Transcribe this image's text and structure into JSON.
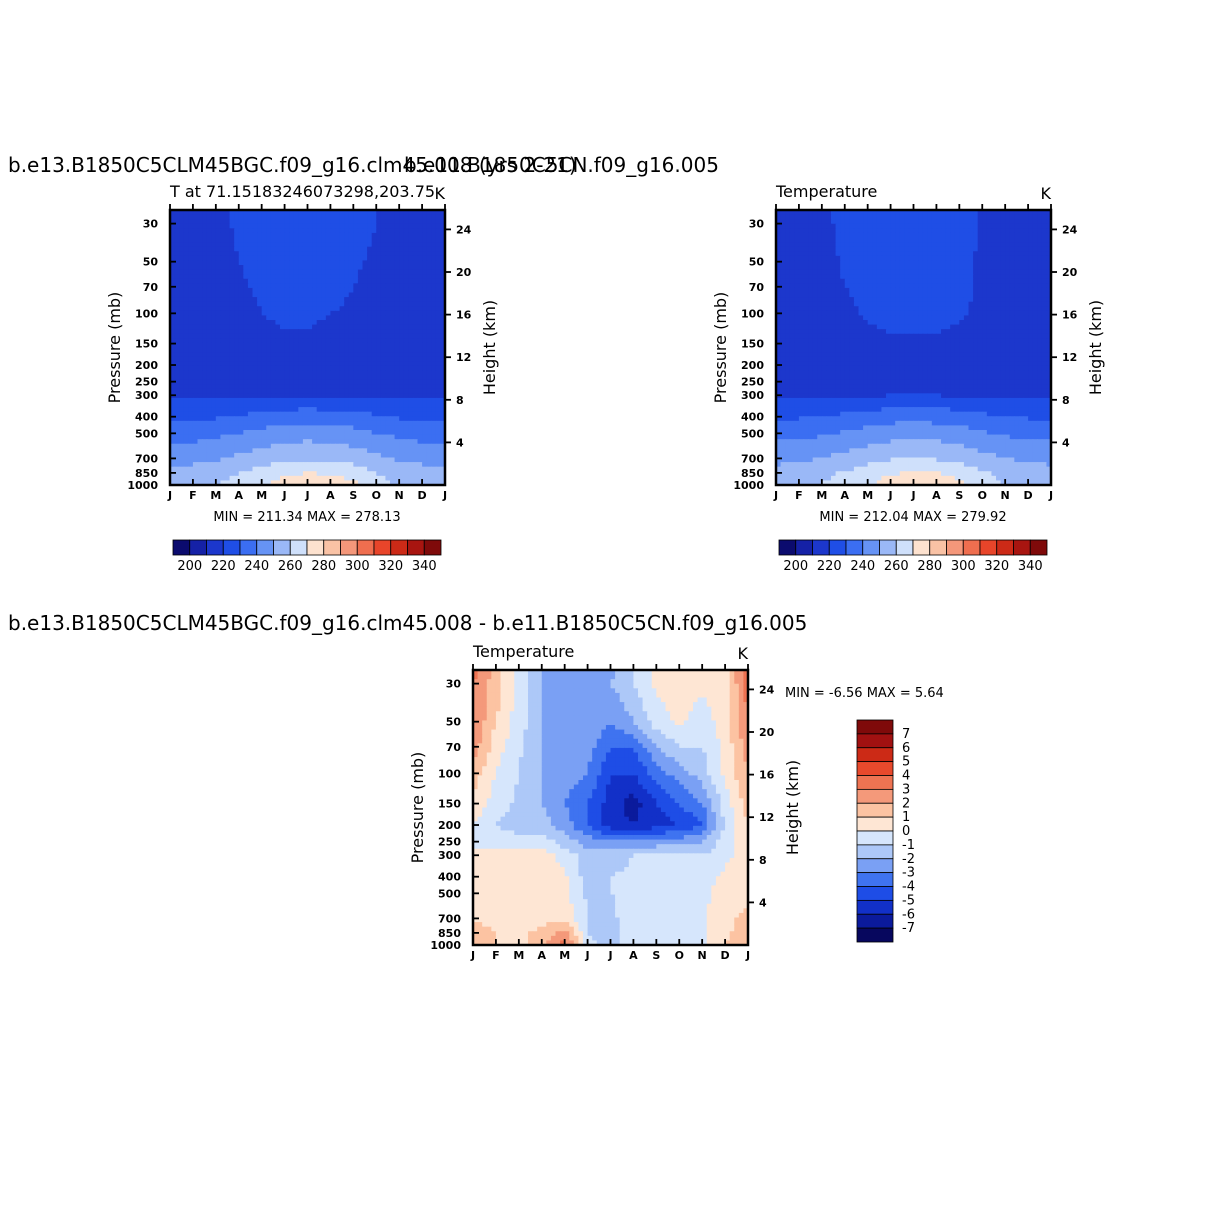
{
  "colors": {
    "temperature": [
      "#0b0b6e",
      "#1521a6",
      "#1c37cc",
      "#1f4ee6",
      "#3b6ef2",
      "#6693f5",
      "#9ab8f7",
      "#cfe0fb",
      "#fde2cf",
      "#f9c2a5",
      "#f4977a",
      "#ef6e4f",
      "#e8452a",
      "#cc2a17",
      "#a81510",
      "#7f0a0a"
    ],
    "difference": [
      "#07075e",
      "#0b1a9c",
      "#1230c8",
      "#1e4de6",
      "#3f73f0",
      "#7aa0f4",
      "#adc8f8",
      "#d6e6fc",
      "#fee6d4",
      "#fcc3a2",
      "#f4997a",
      "#ee7352",
      "#e8492c",
      "#cc2a16",
      "#a11111",
      "#7f0a0a"
    ]
  },
  "chart_data": [
    {
      "type": "heatmap",
      "panel": "top-left",
      "title": "b.e13.B1850C5CLM45BGC.f09_g16.clm45.008 (yrs 2-21)",
      "subtitle": "T at  71.15183246073298,203.75",
      "units": "K",
      "ylabel": "Pressure (mb)",
      "ylabel_right": "Height (km)",
      "x_ticks": [
        "J",
        "F",
        "M",
        "A",
        "M",
        "J",
        "J",
        "A",
        "S",
        "O",
        "N",
        "D",
        "J"
      ],
      "y_ticks": [
        30,
        50,
        70,
        100,
        150,
        200,
        250,
        300,
        400,
        500,
        700,
        850,
        1000
      ],
      "y_right_ticks": [
        24,
        20,
        16,
        12,
        8,
        4
      ],
      "ylim": [
        1000,
        25
      ],
      "y_scale": "log",
      "min_label": "MIN = 211.34",
      "max_label": "MAX = 278.13",
      "min": 211.34,
      "max": 278.13,
      "levels": [
        200,
        210,
        220,
        230,
        240,
        250,
        260,
        270,
        280,
        290,
        300,
        310,
        320,
        330,
        340
      ],
      "colorbar_labels": [
        "200",
        "220",
        "240",
        "260",
        "280",
        "300",
        "320",
        "340"
      ],
      "contours": {
        "p_levels": [
          25,
          30,
          50,
          70,
          100,
          150,
          200,
          250,
          300,
          400,
          500,
          700,
          850,
          1000
        ],
        "months": [
          0,
          1,
          2,
          3,
          4,
          5,
          6,
          7,
          8,
          9,
          10,
          11,
          12
        ],
        "values": [
          [
            212,
            214,
            218,
            221,
            222,
            223,
            224,
            223,
            222,
            220,
            215,
            212,
            212
          ],
          [
            212,
            214,
            218,
            221,
            222,
            223,
            224,
            223,
            222,
            220,
            215,
            212,
            212
          ],
          [
            212,
            213,
            217,
            220,
            222,
            223,
            223,
            222,
            221,
            219,
            214,
            212,
            212
          ],
          [
            212,
            212,
            216,
            219,
            221,
            222,
            222,
            222,
            220,
            218,
            213,
            212,
            212
          ],
          [
            212,
            212,
            214,
            218,
            220,
            221,
            221,
            220,
            219,
            216,
            212,
            212,
            212
          ],
          [
            212,
            212,
            212,
            216,
            218,
            219,
            219,
            218,
            217,
            214,
            212,
            212,
            212
          ],
          [
            212,
            212,
            212,
            214,
            215,
            216,
            216,
            216,
            215,
            213,
            212,
            212,
            212
          ],
          [
            214,
            214,
            214,
            215,
            216,
            216,
            216,
            216,
            216,
            215,
            214,
            214,
            214
          ],
          [
            218,
            218,
            218,
            218,
            218,
            219,
            219,
            219,
            218,
            218,
            218,
            218,
            218
          ],
          [
            228,
            228,
            229,
            231,
            233,
            235,
            236,
            235,
            234,
            231,
            229,
            228,
            228
          ],
          [
            236,
            236,
            238,
            240,
            243,
            245,
            246,
            245,
            243,
            240,
            238,
            236,
            236
          ],
          [
            246,
            247,
            249,
            252,
            255,
            258,
            259,
            258,
            256,
            252,
            249,
            247,
            246
          ],
          [
            253,
            254,
            256,
            260,
            264,
            268,
            270,
            269,
            266,
            260,
            256,
            254,
            253
          ],
          [
            256,
            257,
            260,
            264,
            268,
            274,
            278,
            276,
            272,
            264,
            259,
            257,
            256
          ]
        ]
      }
    },
    {
      "type": "heatmap",
      "panel": "top-right",
      "title": "b.e11.B1850C5CN.f09_g16.005",
      "subtitle": "Temperature",
      "units": "K",
      "ylabel": "Pressure (mb)",
      "ylabel_right": "Height (km)",
      "x_ticks": [
        "J",
        "F",
        "M",
        "A",
        "M",
        "J",
        "J",
        "A",
        "S",
        "O",
        "N",
        "D",
        "J"
      ],
      "y_ticks": [
        30,
        50,
        70,
        100,
        150,
        200,
        250,
        300,
        400,
        500,
        700,
        850,
        1000
      ],
      "y_right_ticks": [
        24,
        20,
        16,
        12,
        8,
        4
      ],
      "ylim": [
        1000,
        25
      ],
      "y_scale": "log",
      "min_label": "MIN = 212.04",
      "max_label": "MAX = 279.92",
      "min": 212.04,
      "max": 279.92,
      "levels": [
        200,
        210,
        220,
        230,
        240,
        250,
        260,
        270,
        280,
        290,
        300,
        310,
        320,
        330,
        340
      ],
      "colorbar_labels": [
        "200",
        "220",
        "240",
        "260",
        "280",
        "300",
        "320",
        "340"
      ],
      "contours": {
        "p_levels": [
          25,
          30,
          50,
          70,
          100,
          150,
          200,
          250,
          300,
          400,
          500,
          700,
          850,
          1000
        ],
        "months": [
          0,
          1,
          2,
          3,
          4,
          5,
          6,
          7,
          8,
          9,
          10,
          11,
          12
        ],
        "values": [
          [
            213,
            214,
            218,
            222,
            223,
            224,
            226,
            225,
            223,
            219,
            214,
            213,
            213
          ],
          [
            213,
            214,
            218,
            222,
            223,
            224,
            226,
            225,
            223,
            219,
            214,
            213,
            213
          ],
          [
            213,
            213,
            217,
            221,
            223,
            224,
            225,
            224,
            222,
            219,
            215,
            213,
            213
          ],
          [
            213,
            213,
            216,
            220,
            222,
            223,
            224,
            223,
            222,
            219,
            215,
            213,
            213
          ],
          [
            213,
            213,
            214,
            218,
            221,
            222,
            222,
            222,
            221,
            218,
            215,
            213,
            213
          ],
          [
            213,
            213,
            212,
            215,
            218,
            219,
            219,
            219,
            218,
            216,
            213,
            213,
            213
          ],
          [
            213,
            213,
            213,
            213,
            215,
            216,
            216,
            216,
            215,
            214,
            213,
            213,
            213
          ],
          [
            214,
            214,
            214,
            215,
            216,
            217,
            217,
            217,
            216,
            215,
            214,
            214,
            214
          ],
          [
            218,
            218,
            218,
            219,
            219,
            220,
            220,
            220,
            219,
            219,
            218,
            218,
            218
          ],
          [
            229,
            229,
            230,
            232,
            234,
            236,
            237,
            236,
            235,
            232,
            230,
            229,
            229
          ],
          [
            237,
            237,
            239,
            241,
            244,
            246,
            247,
            246,
            244,
            241,
            239,
            237,
            237
          ],
          [
            247,
            248,
            250,
            253,
            256,
            259,
            260,
            259,
            257,
            253,
            250,
            248,
            247
          ],
          [
            254,
            255,
            257,
            261,
            265,
            269,
            271,
            270,
            267,
            261,
            257,
            255,
            254
          ],
          [
            257,
            258,
            261,
            265,
            269,
            275,
            280,
            277,
            273,
            265,
            260,
            258,
            257
          ]
        ]
      }
    },
    {
      "type": "heatmap",
      "panel": "bottom",
      "title": "b.e13.B1850C5CLM45BGC.f09_g16.clm45.008 - b.e11.B1850C5CN.f09_g16.005",
      "subtitle": "Temperature",
      "units": "K",
      "ylabel": "Pressure (mb)",
      "ylabel_right": "Height (km)",
      "x_ticks": [
        "J",
        "F",
        "M",
        "A",
        "M",
        "J",
        "J",
        "A",
        "S",
        "O",
        "N",
        "D",
        "J"
      ],
      "y_ticks": [
        30,
        50,
        70,
        100,
        150,
        200,
        250,
        300,
        400,
        500,
        700,
        850,
        1000
      ],
      "y_right_ticks": [
        24,
        20,
        16,
        12,
        8,
        4
      ],
      "ylim": [
        1000,
        25
      ],
      "y_scale": "log",
      "min_label": "MIN = -6.56",
      "max_label": "MAX = 5.64",
      "min": -6.56,
      "max": 5.64,
      "levels": [
        -7,
        -6,
        -5,
        -4,
        -3,
        -2,
        -1,
        0,
        1,
        2,
        3,
        4,
        5,
        6,
        7
      ],
      "colorbar_labels": [
        "7",
        "6",
        "5",
        "4",
        "3",
        "2",
        "1",
        "0",
        "-1",
        "-2",
        "-3",
        "-4",
        "-5",
        "-6",
        "-7"
      ],
      "legend_position": "right",
      "contours": {
        "p_levels": [
          25,
          30,
          50,
          70,
          100,
          150,
          200,
          250,
          300,
          400,
          500,
          700,
          850,
          1000
        ],
        "months": [
          0,
          1,
          2,
          3,
          4,
          5,
          6,
          7,
          8,
          9,
          10,
          11,
          12
        ],
        "values": [
          [
            3.5,
            1.5,
            -0.5,
            -2.0,
            -2.5,
            -2.5,
            -2.5,
            -1.0,
            0.2,
            0.6,
            0.2,
            0.5,
            3.5
          ],
          [
            3.0,
            1.5,
            -0.5,
            -2.0,
            -2.5,
            -2.5,
            -2.0,
            -1.0,
            0.2,
            0.6,
            0.2,
            0.5,
            3.5
          ],
          [
            3.0,
            1.0,
            -0.5,
            -2.0,
            -2.5,
            -2.0,
            -3.0,
            -2.0,
            -0.5,
            0.2,
            -0.5,
            0.5,
            3.0
          ],
          [
            2.5,
            0.5,
            -0.8,
            -2.0,
            -2.5,
            -2.5,
            -4.0,
            -4.0,
            -2.0,
            -1.0,
            -1.0,
            0.3,
            2.5
          ],
          [
            1.5,
            0.0,
            -1.0,
            -2.0,
            -2.5,
            -3.0,
            -5.0,
            -5.0,
            -3.5,
            -2.5,
            -1.5,
            0.2,
            2.0
          ],
          [
            0.8,
            -0.5,
            -1.2,
            -2.0,
            -3.0,
            -4.0,
            -5.5,
            -6.5,
            -5.0,
            -4.0,
            -3.0,
            -0.5,
            1.5
          ],
          [
            0.0,
            -1.0,
            -1.5,
            -1.5,
            -2.5,
            -4.0,
            -5.5,
            -6.0,
            -5.5,
            -5.0,
            -4.0,
            -0.8,
            1.0
          ],
          [
            -0.5,
            -0.8,
            -0.5,
            -0.5,
            -1.5,
            -2.5,
            -3.0,
            -3.0,
            -2.5,
            -2.5,
            -2.0,
            -0.5,
            0.5
          ],
          [
            0.3,
            0.5,
            0.5,
            0.6,
            -0.5,
            -1.5,
            -1.5,
            -1.0,
            -1.0,
            -1.0,
            -1.0,
            -0.2,
            0.3
          ],
          [
            0.5,
            0.6,
            0.6,
            0.8,
            0.2,
            -1.5,
            -1.0,
            -0.8,
            -0.5,
            -0.5,
            -0.5,
            0.2,
            0.5
          ],
          [
            0.6,
            0.6,
            0.6,
            0.6,
            0.2,
            -1.2,
            -1.0,
            -0.8,
            -0.5,
            -0.5,
            -0.3,
            0.5,
            0.8
          ],
          [
            1.0,
            0.8,
            0.6,
            0.6,
            0.8,
            -1.0,
            -1.2,
            -0.5,
            -0.5,
            -0.5,
            -0.2,
            0.8,
            1.2
          ],
          [
            1.2,
            1.0,
            0.8,
            1.2,
            2.5,
            -1.0,
            -1.5,
            -0.5,
            -0.5,
            -0.5,
            -0.2,
            0.8,
            1.5
          ],
          [
            1.2,
            1.0,
            0.8,
            1.5,
            3.5,
            -0.8,
            -1.2,
            -0.5,
            -0.5,
            -0.5,
            -0.2,
            1.0,
            1.8
          ]
        ]
      }
    }
  ]
}
